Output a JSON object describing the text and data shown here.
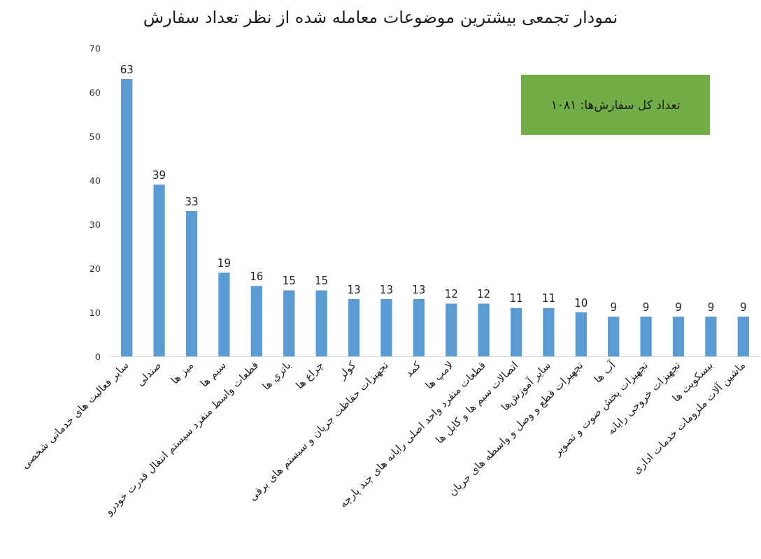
{
  "chart_data": {
    "type": "bar",
    "title": "نمودار تجمعی بیشترین موضوعات معامله شده از نظر تعداد سفارش",
    "categories": [
      "سایر فعالیت های خدماتی شخصی",
      "صندلی",
      "میز ها",
      "سیم ها",
      "قطعات واسط منفرد سیستم انتقال قدرت خودرو",
      "باتري ها",
      "چراغ ها",
      "کولر",
      "تجهیزات حفاظت جریان و سیستم های برقی",
      "کمد",
      "لامپ ها",
      "قطعات منفرد واحد اصلی رایانه های چند پارچه",
      "اتصالات سیم ها و کابل ها",
      "سایر آموزش‌ها",
      "تجهیزات قطع و وصل و واسطه های جریان",
      "آب ها",
      "تجهیزات پخش صوت و تصویر",
      "تجهیزات خروجی رایانه",
      "بیسکویت ها",
      "ماشین آلات ملزومات خدمات اداری"
    ],
    "values": [
      63,
      39,
      33,
      19,
      16,
      15,
      15,
      13,
      13,
      13,
      12,
      12,
      11,
      11,
      10,
      9,
      9,
      9,
      9,
      9
    ],
    "color": "#5b9bd5",
    "ylim": [
      0,
      70
    ],
    "yticks": [
      0,
      10,
      20,
      30,
      40,
      50,
      60,
      70
    ],
    "data_labels": true,
    "annotations": [
      "تعداد کل سفارش‌ها: ۱۰۸۱"
    ]
  }
}
